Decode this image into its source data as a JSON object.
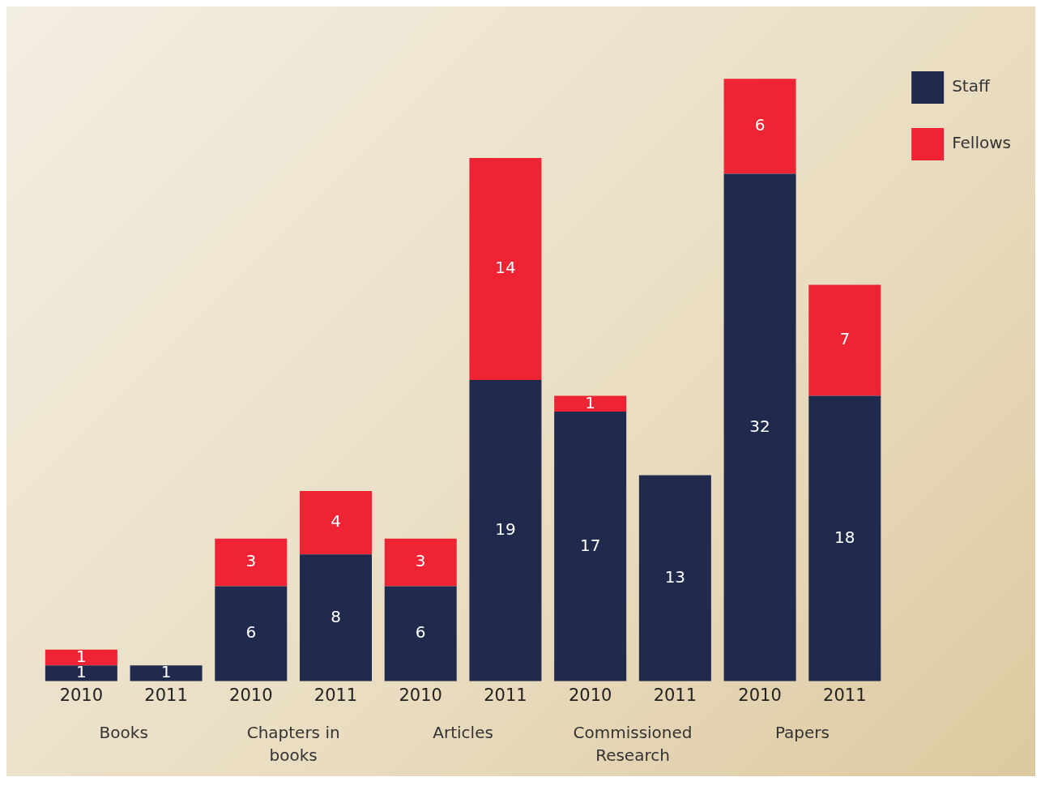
{
  "chart_data": {
    "type": "bar",
    "stacked": true,
    "data_labels": true,
    "legend": "top right",
    "grid": false,
    "categories": [
      "2010",
      "2011",
      "2010",
      "2011",
      "2010",
      "2011",
      "2010",
      "2011",
      "2010",
      "2011"
    ],
    "series": [
      {
        "name": "Staff",
        "color": "#1f2a4d",
        "values": [
          1,
          1,
          6,
          8,
          6,
          19,
          17,
          13,
          32,
          18
        ]
      },
      {
        "name": "Fellows",
        "color": "#ee2434",
        "values": [
          1,
          null,
          3,
          4,
          3,
          14,
          1,
          null,
          6,
          7
        ]
      }
    ],
    "annotations": [
      "Books",
      "Chapters in\nbooks",
      "Articles",
      "Commissioned\nResearch",
      "Papers"
    ]
  }
}
